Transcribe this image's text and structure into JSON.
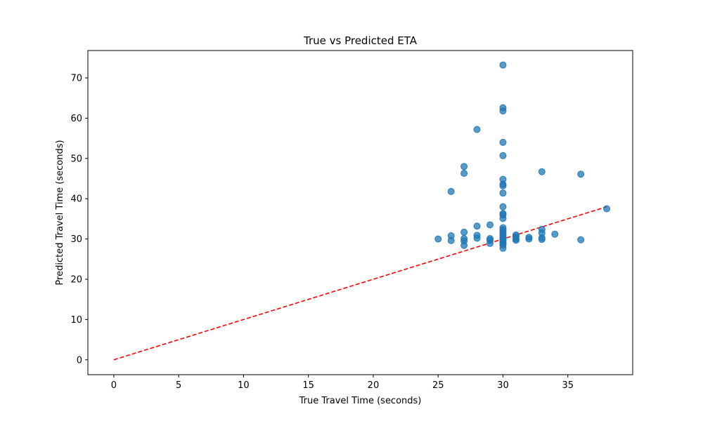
{
  "chart_data": {
    "type": "scatter",
    "title": "True vs Predicted ETA",
    "xlabel": "True Travel Time (seconds)",
    "ylabel": "Predicted Travel Time (seconds)",
    "xlim": [
      -2,
      40
    ],
    "ylim": [
      -3.7,
      76.8
    ],
    "xticks": [
      0,
      5,
      10,
      15,
      20,
      25,
      30,
      35
    ],
    "yticks": [
      0,
      10,
      20,
      30,
      40,
      50,
      60,
      70
    ],
    "grid": false,
    "legend": "none",
    "point_color": "#1f77b4",
    "line_color": "#ff0000",
    "series": [
      {
        "kind": "points",
        "x": [
          25,
          26,
          26,
          26,
          27,
          27,
          27,
          27,
          27,
          27,
          28,
          28,
          28,
          28,
          29,
          29,
          29,
          29,
          30,
          30,
          30,
          30,
          30,
          30,
          30,
          30,
          30,
          30,
          30,
          30,
          30,
          30,
          30,
          30,
          30,
          30,
          30,
          30,
          30,
          30,
          30,
          30,
          30,
          30,
          31,
          31,
          31,
          31,
          32,
          32,
          33,
          33,
          33,
          33,
          33,
          34,
          36,
          36,
          38
        ],
        "y": [
          30.0,
          41.8,
          30.8,
          29.6,
          48.0,
          46.3,
          31.7,
          30.1,
          29.5,
          28.4,
          57.2,
          33.2,
          30.9,
          30.2,
          33.5,
          30.1,
          29.7,
          28.9,
          73.2,
          62.6,
          61.8,
          54.0,
          50.7,
          44.8,
          43.6,
          43.2,
          41.4,
          38.0,
          36.3,
          36.0,
          35.1,
          32.8,
          32.3,
          31.8,
          31.3,
          30.9,
          30.5,
          30.1,
          29.8,
          29.5,
          29.1,
          28.9,
          28.5,
          27.7,
          31.0,
          30.6,
          30.0,
          29.7,
          30.4,
          30.0,
          46.7,
          32.4,
          31.5,
          30.3,
          29.9,
          31.2,
          46.1,
          29.8,
          37.5
        ]
      },
      {
        "kind": "reference-line",
        "x": [
          0,
          38
        ],
        "y": [
          0,
          38
        ]
      }
    ]
  }
}
